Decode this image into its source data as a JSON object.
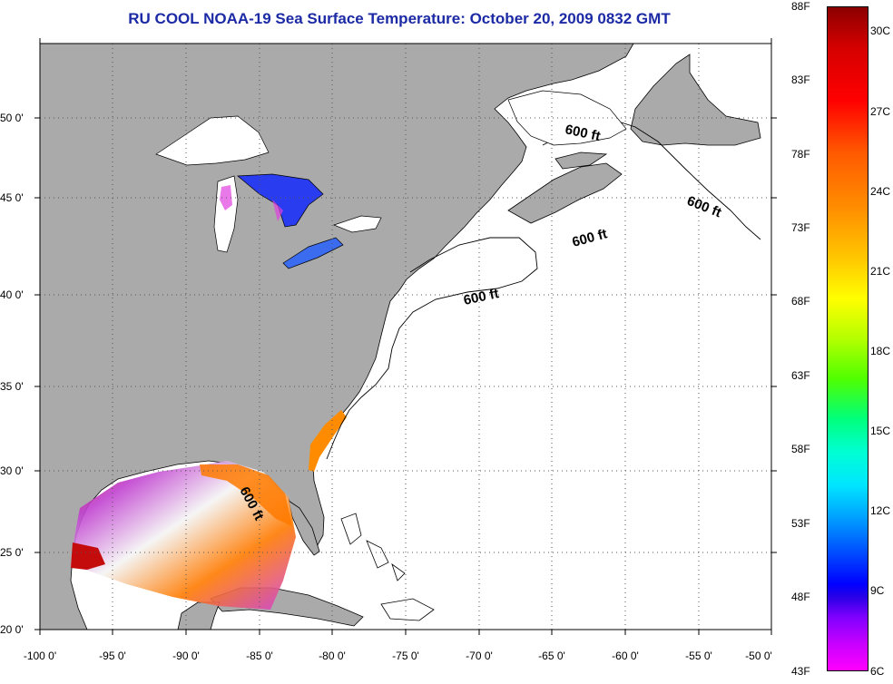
{
  "title": "RU COOL  NOAA-19  Sea Surface Temperature:  October 20, 2009 0832 GMT",
  "map": {
    "lat_labels": [
      "50 0'",
      "45 0'",
      "40 0'",
      "35 0'",
      "30 0'",
      "25 0'",
      "20 0'"
    ],
    "lon_labels": [
      "-100 0'",
      "-95 0'",
      "-90 0'",
      "-85 0'",
      "-80 0'",
      "-75 0'",
      "-70 0'",
      "-65 0'",
      "-60 0'",
      "-55 0'",
      "-50 0'"
    ],
    "isobath_labels": [
      "600 ft",
      "600 ft",
      "600 ft",
      "600 ft",
      "600 ft"
    ],
    "colors": {
      "land": "#aaaaaa",
      "ocean": "#ffffff",
      "grid": "#555555"
    }
  },
  "colorbar": {
    "fahrenheit_labels": [
      "88F",
      "83F",
      "78F",
      "73F",
      "68F",
      "63F",
      "58F",
      "53F",
      "48F",
      "43F"
    ],
    "celsius_labels": [
      "30C",
      "27C",
      "24C",
      "21C",
      "18C",
      "15C",
      "12C",
      "9C",
      "6C"
    ]
  }
}
